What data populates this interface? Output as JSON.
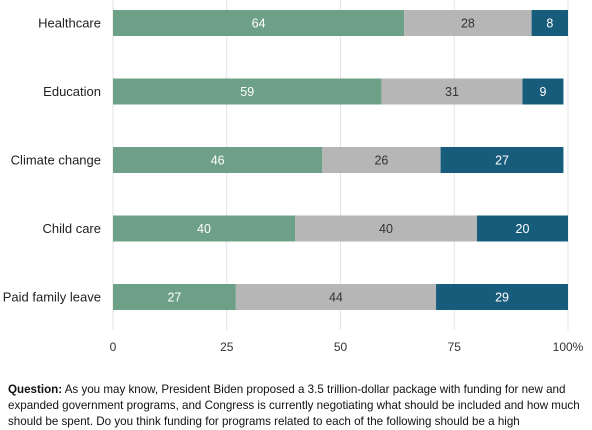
{
  "chart_data": {
    "type": "bar",
    "orientation": "horizontal",
    "stacked": true,
    "categories": [
      "Healthcare",
      "Education",
      "Climate change",
      "Child care",
      "Paid family leave"
    ],
    "series": [
      {
        "color": "#6da086",
        "label_color": "#ffffff",
        "values": [
          64,
          59,
          46,
          40,
          27
        ]
      },
      {
        "color": "#b6b6b6",
        "label_color": "#333333",
        "values": [
          28,
          31,
          26,
          40,
          44
        ]
      },
      {
        "color": "#185c7c",
        "label_color": "#ffffff",
        "values": [
          8,
          9,
          27,
          20,
          29
        ]
      }
    ],
    "xlim": [
      0,
      100
    ],
    "xticks": [
      0,
      25,
      50,
      75,
      100
    ],
    "xtick_labels": [
      "0",
      "25",
      "50",
      "75",
      "100%"
    ],
    "grid": true
  },
  "question": {
    "label": "Question:",
    "text": " As you may know, President Biden proposed a 3.5 trillion-dollar package with funding for new and expanded government programs, and Congress is currently negotiating what should be included and how much should be spent. Do you think funding for programs related to each of the following should be a high"
  }
}
